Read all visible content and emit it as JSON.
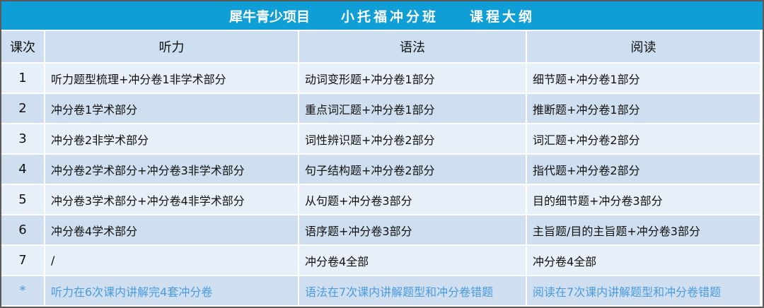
{
  "title": {
    "part1": "犀牛青少项目",
    "part2": "小托福冲分班",
    "part3": "课程大纲"
  },
  "headers": [
    "课次",
    "听力",
    "语法",
    "阅读"
  ],
  "rows": [
    [
      "1",
      "听力题型梳理+冲分卷1非学术部分",
      "动词变形题+冲分卷1部分",
      "细节题+冲分卷1部分"
    ],
    [
      "2",
      "冲分卷1学术部分",
      "重点词汇题+冲分卷1部分",
      "推断题+冲分卷1部分"
    ],
    [
      "3",
      "冲分卷2非学术部分",
      "词性辨识题+冲分卷2部分",
      "词汇题+冲分卷2部分"
    ],
    [
      "4",
      "冲分卷2学术部分+冲分卷3非学术部分",
      "句子结构题+冲分卷2部分",
      "指代题+冲分卷2部分"
    ],
    [
      "5",
      "冲分卷3学术部分+冲分卷4非学术部分",
      "从句题+冲分卷3部分",
      "目的细节题+冲分卷3部分"
    ],
    [
      "6",
      "冲分卷4学术部分",
      "语序题+冲分卷3部分",
      "主旨题/目的主旨题+冲分卷3部分"
    ],
    [
      "7",
      "/",
      "冲分卷4全部",
      "冲分卷4全部"
    ]
  ],
  "note": [
    "*",
    "听力在6次课内讲解完4套冲分卷",
    "语法在7次课内讲解题型和冲分卷错题",
    "阅读在7次课内讲解题型和冲分卷错题"
  ]
}
